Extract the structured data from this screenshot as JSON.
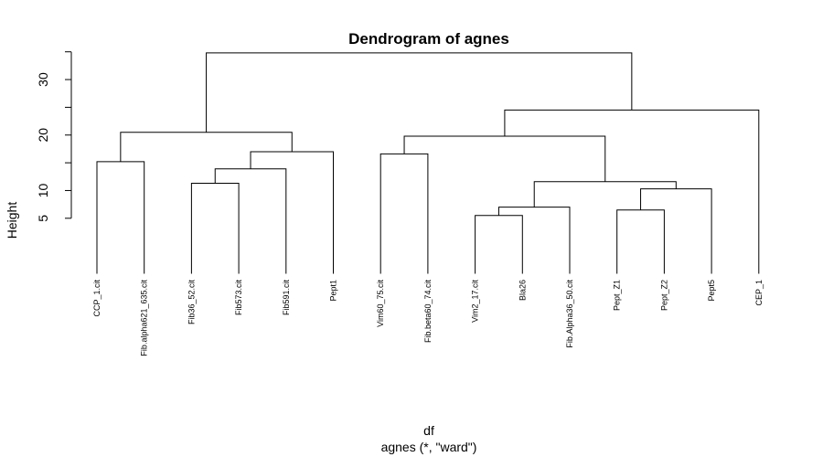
{
  "chart_data": {
    "type": "dendrogram",
    "title": "Dendrogram of agnes",
    "ylabel": "Height",
    "xlabel": "df",
    "sublabel": "agnes (*, \"ward\")",
    "ylim": [
      -5,
      35
    ],
    "yticks": [
      5,
      10,
      20,
      30
    ],
    "yticks_minor": [
      15,
      25,
      35
    ],
    "leaves": [
      "CCP_1.cit",
      "Fib.alpha621_635.cit",
      "Fib36_52.cit",
      "Fib573.cit",
      "Fib591.cit",
      "Pept1",
      "Vim60_75.cit",
      "Fib.beta60_74.cit",
      "Vim2_17.cit",
      "Bla26",
      "Fib.Alpha36_50.cit",
      "Pept_Z1",
      "Pept_Z2",
      "Pept5",
      "CEP_1"
    ],
    "merges": [
      {
        "a": [
          "leaf",
          8
        ],
        "b": [
          "leaf",
          9
        ],
        "height": 5.5
      },
      {
        "a": [
          "leaf",
          11
        ],
        "b": [
          "leaf",
          12
        ],
        "height": 6.5
      },
      {
        "a": [
          "node",
          0
        ],
        "b": [
          "leaf",
          10
        ],
        "height": 7.0
      },
      {
        "a": [
          "node",
          1
        ],
        "b": [
          "leaf",
          13
        ],
        "height": 10.3
      },
      {
        "a": [
          "leaf",
          2
        ],
        "b": [
          "leaf",
          3
        ],
        "height": 11.3
      },
      {
        "a": [
          "node",
          2
        ],
        "b": [
          "node",
          3
        ],
        "height": 11.6
      },
      {
        "a": [
          "node",
          4
        ],
        "b": [
          "leaf",
          4
        ],
        "height": 13.9
      },
      {
        "a": [
          "leaf",
          0
        ],
        "b": [
          "leaf",
          1
        ],
        "height": 15.2
      },
      {
        "a": [
          "leaf",
          6
        ],
        "b": [
          "leaf",
          7
        ],
        "height": 16.6
      },
      {
        "a": [
          "node",
          6
        ],
        "b": [
          "leaf",
          5
        ],
        "height": 17.0
      },
      {
        "a": [
          "node",
          8
        ],
        "b": [
          "node",
          5
        ],
        "height": 19.8
      },
      {
        "a": [
          "node",
          7
        ],
        "b": [
          "node",
          9
        ],
        "height": 20.5
      },
      {
        "a": [
          "node",
          10
        ],
        "b": [
          "leaf",
          14
        ],
        "height": 24.5
      },
      {
        "a": [
          "node",
          11
        ],
        "b": [
          "node",
          12
        ],
        "height": 34.8
      }
    ],
    "leaf_height": -5
  }
}
